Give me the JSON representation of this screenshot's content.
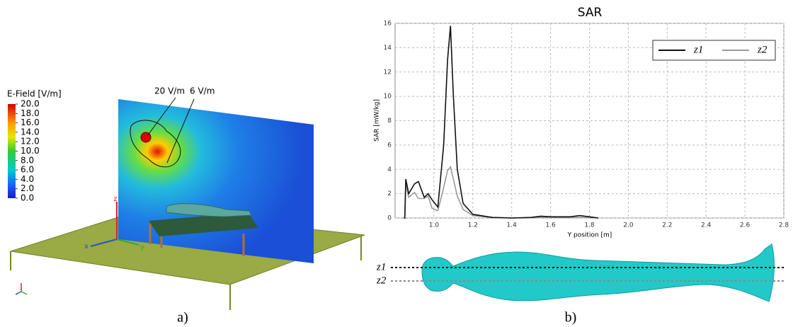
{
  "chart_data": {
    "type": "line",
    "title": "SAR",
    "x_label": "Y position [m]",
    "y_label": "SAR [mW/kg]",
    "x": [
      0.845,
      0.85,
      0.855,
      0.87,
      0.9,
      0.92,
      0.95,
      0.97,
      0.99,
      1.02,
      1.05,
      1.07,
      1.085,
      1.1,
      1.12,
      1.15,
      1.2,
      1.3,
      1.4,
      1.5,
      1.55,
      1.6,
      1.7,
      1.75,
      1.8,
      1.845
    ],
    "series": [
      {
        "name": "z1",
        "color": "#111111",
        "values": [
          0,
          0,
          3.2,
          2.0,
          2.8,
          3.0,
          1.7,
          2.0,
          1.5,
          0.9,
          6,
          13,
          15.8,
          10,
          4,
          1.2,
          0.3,
          0.05,
          0,
          0.05,
          0.15,
          0.1,
          0.1,
          0.2,
          0.1,
          0
        ]
      },
      {
        "name": "z2",
        "color": "#999999",
        "values": [
          0,
          0,
          2.8,
          1.7,
          2.1,
          1.6,
          1.6,
          1.8,
          0.8,
          0.6,
          2.5,
          3.9,
          4.2,
          3.2,
          1.8,
          0.7,
          0.2,
          0.05,
          0,
          0.02,
          0.05,
          0.03,
          0.03,
          0.05,
          0.02,
          0
        ]
      }
    ],
    "xlim": [
      0.8,
      2.8
    ],
    "xticks": [
      {
        "value": 1.0,
        "label": "1.0"
      },
      1.2,
      1.4,
      1.6,
      1.8,
      {
        "value": 2.0,
        "label": "2.0"
      },
      2.2,
      2.4,
      2.6,
      2.8
    ],
    "ylim": [
      0,
      16
    ],
    "yticks": [
      0,
      2,
      4,
      6,
      8,
      10,
      12,
      14,
      16
    ],
    "grid": true,
    "legend": "top-right"
  },
  "panel_a": {
    "colorbar": {
      "title": "E-Field [V/m]",
      "lim": [
        0,
        20
      ],
      "ticks": [
        {
          "value": 20,
          "label": "20.0"
        },
        {
          "value": 18,
          "label": "18.0"
        },
        {
          "value": 16,
          "label": "16.0"
        },
        {
          "value": 14,
          "label": "14.0"
        },
        {
          "value": 12,
          "label": "12.0"
        },
        {
          "value": 10,
          "label": "10.0"
        },
        {
          "value": 8,
          "label": "8.0"
        },
        {
          "value": 6,
          "label": "6.0"
        },
        {
          "value": 4,
          "label": "4.0"
        },
        {
          "value": 2,
          "label": "2.0"
        },
        {
          "value": 0,
          "label": "0.0"
        }
      ]
    },
    "annotations": [
      "20 V/m",
      "6 V/m"
    ],
    "axis_labels": [
      "z",
      "x",
      "y"
    ],
    "caption": "a)"
  },
  "panel_b": {
    "body_labels": [
      "z1",
      "z2"
    ],
    "caption": "b)"
  }
}
